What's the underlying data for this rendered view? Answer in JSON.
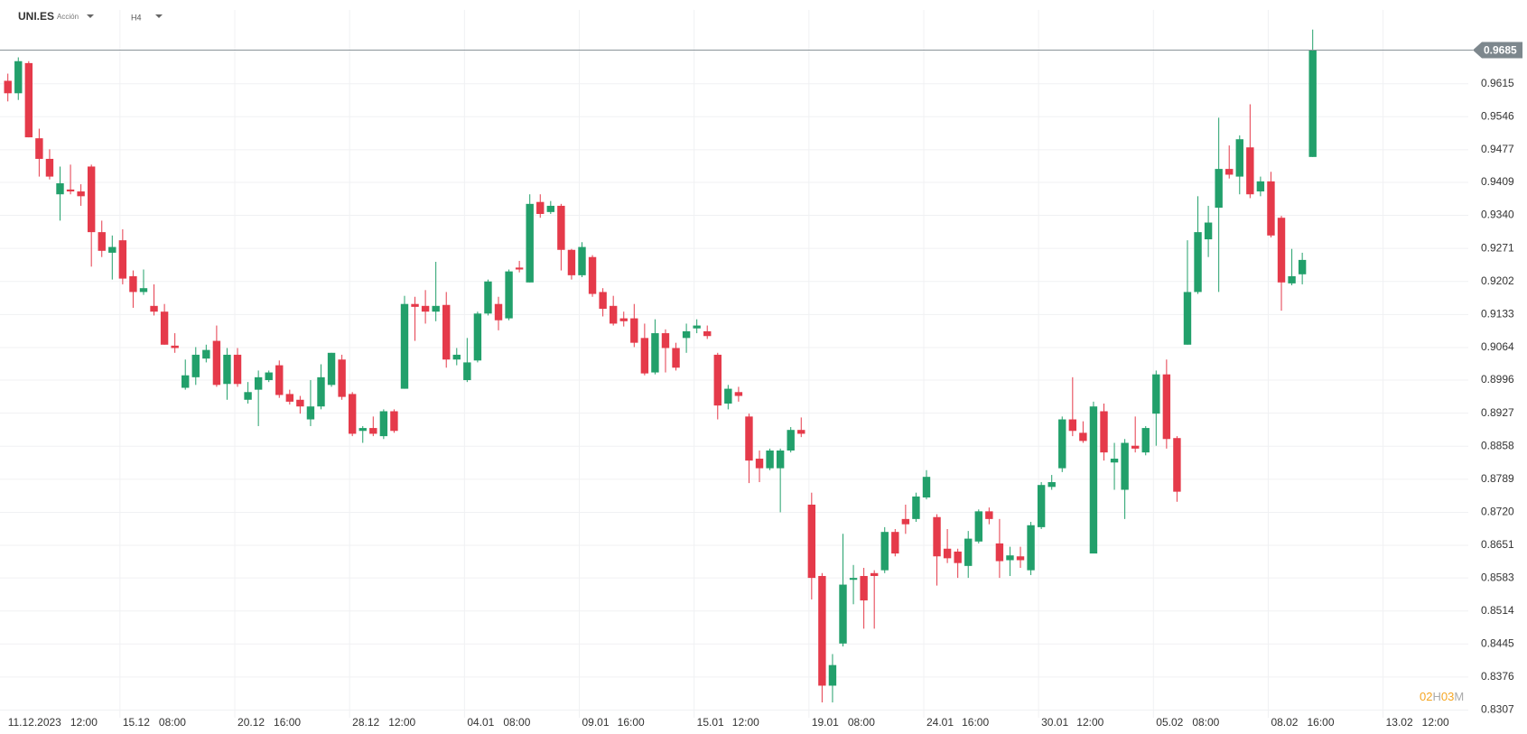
{
  "header": {
    "symbol": "UNI.ES",
    "kind": "Acción",
    "timeframe": "H4"
  },
  "countdown": {
    "hours": "02",
    "h": "H",
    "minutes": "03",
    "m": "M"
  },
  "chart_data": {
    "type": "candlestick",
    "up_color": "#22a06b",
    "down_color": "#e53a4a",
    "grid": true,
    "ylim": [
      0.8291,
      0.9769
    ],
    "yticks": [
      0.9615,
      0.9546,
      0.9477,
      0.9409,
      {
        "value": 0.934,
        "label": "0.9340"
      },
      0.9271,
      0.9202,
      0.9133,
      0.9064,
      0.8996,
      0.8927,
      0.8858,
      0.8789,
      {
        "value": 0.872,
        "label": "0.8720"
      },
      0.8651,
      0.8583,
      0.8514,
      0.8445,
      0.8376,
      0.8307
    ],
    "last_price": 0.9685,
    "x_labels": [
      {
        "date": "11.12.2023",
        "time": "12:00"
      },
      {
        "date": "15.12",
        "time": "08:00"
      },
      {
        "date": "20.12",
        "time": "16:00"
      },
      {
        "date": "28.12",
        "time": "12:00"
      },
      {
        "date": "04.01",
        "time": "08:00"
      },
      {
        "date": "09.01",
        "time": "16:00"
      },
      {
        "date": "15.01",
        "time": "12:00"
      },
      {
        "date": "19.01",
        "time": "08:00"
      },
      {
        "date": "24.01",
        "time": "16:00"
      },
      {
        "date": "30.01",
        "time": "12:00"
      },
      {
        "date": "05.02",
        "time": "08:00"
      },
      {
        "date": "08.02",
        "time": "16:00"
      },
      {
        "date": "13.02",
        "time": "12:00"
      }
    ],
    "open": [
      0.9621,
      0.9595,
      0.9658,
      0.9501,
      0.9458,
      0.9384,
      0.9394,
      0.939,
      0.9442,
      0.9305,
      0.9262,
      0.9288,
      0.9213,
      0.918,
      0.9151,
      0.9139,
      0.9068,
      0.898,
      0.9002,
      0.9041,
      0.9078,
      0.8988,
      0.9049,
      0.8955,
      0.8976,
      0.8996,
      0.9027,
      0.8967,
      0.8955,
      0.8914,
      0.8941,
      0.8986,
      0.9039,
      0.8967,
      0.889,
      0.8896,
      0.8879,
      0.8931,
      0.8978,
      0.9155,
      0.9151,
      0.9139,
      0.9153,
      0.9039,
      0.8996,
      0.9037,
      0.9135,
      0.9155,
      0.9125,
      0.9231,
      0.92,
      0.9368,
      0.9347,
      0.936,
      0.9268,
      0.9215,
      0.9253,
      0.918,
      0.9151,
      0.9125,
      0.9125,
      0.9084,
      0.9012,
      0.9094,
      0.9063,
      0.9084,
      0.9104,
      0.9098,
      0.9049,
      0.8947,
      0.8971,
      0.892,
      0.8832,
      0.8812,
      0.8812,
      0.8849,
      0.8892,
      0.8736,
      0.8587,
      0.8358,
      0.8446,
      0.8579,
      0.8587,
      0.8593,
      0.8599,
      0.8679,
      0.8706,
      0.8706,
      0.8751,
      0.871,
      0.8644,
      0.8638,
      0.8608,
      0.8659,
      0.8722,
      0.8655,
      0.862,
      0.8628,
      0.8599,
      0.8689,
      0.8773,
      0.8812,
      0.8914,
      0.8886,
      0.8634,
      0.8931,
      0.8824,
      0.8767,
      0.8859,
      0.8845,
      0.8926,
      0.9008,
      0.8875,
      0.907,
      0.918,
      0.929,
      0.9356,
      0.9437,
      0.9421,
      0.9482,
      0.939,
      0.9411,
      0.9335,
      0.9198,
      0.9217,
      0.9462
    ],
    "high": [
      0.9636,
      0.967,
      0.9662,
      0.9521,
      0.9478,
      0.9442,
      0.9446,
      0.9405,
      0.9446,
      0.9329,
      0.9298,
      0.9311,
      0.9225,
      0.9227,
      0.9196,
      0.9155,
      0.9094,
      0.9039,
      0.9065,
      0.907,
      0.911,
      0.9063,
      0.9063,
      0.8992,
      0.9016,
      0.9016,
      0.9037,
      0.8976,
      0.8963,
      0.8996,
      0.9029,
      0.9053,
      0.9049,
      0.8971,
      0.89,
      0.892,
      0.8935,
      0.8935,
      0.9172,
      0.917,
      0.9184,
      0.9243,
      0.918,
      0.9063,
      0.9084,
      0.9139,
      0.9206,
      0.917,
      0.9227,
      0.9245,
      0.9384,
      0.9384,
      0.937,
      0.9364,
      0.927,
      0.9284,
      0.9257,
      0.9188,
      0.9172,
      0.9139,
      0.9155,
      0.9114,
      0.9123,
      0.9102,
      0.9074,
      0.9114,
      0.9123,
      0.911,
      0.9053,
      0.8986,
      0.8982,
      0.8926,
      0.8849,
      0.8853,
      0.8853,
      0.8898,
      0.8918,
      0.8761,
      0.8593,
      0.8424,
      0.8675,
      0.861,
      0.8604,
      0.8599,
      0.8689,
      0.8685,
      0.8736,
      0.8761,
      0.8808,
      0.8716,
      0.8685,
      0.8644,
      0.8681,
      0.8726,
      0.873,
      0.8706,
      0.8648,
      0.8648,
      0.87,
      0.8783,
      0.8798,
      0.892,
      0.9002,
      0.891,
      0.8951,
      0.8947,
      0.8865,
      0.8873,
      0.892,
      0.89,
      0.9016,
      0.9039,
      0.8879,
      0.9288,
      0.938,
      0.936,
      0.9544,
      0.9486,
      0.9507,
      0.9572,
      0.9421,
      0.9431,
      0.9339,
      0.927,
      0.9262,
      0.9728
    ],
    "low": [
      0.9578,
      0.9581,
      0.9503,
      0.9421,
      0.9415,
      0.9329,
      0.9384,
      0.936,
      0.9233,
      0.9253,
      0.9206,
      0.9196,
      0.9147,
      0.9174,
      0.9131,
      0.907,
      0.9053,
      0.8976,
      0.8986,
      0.9033,
      0.8982,
      0.8955,
      0.8982,
      0.8947,
      0.89,
      0.8992,
      0.8959,
      0.8945,
      0.8926,
      0.89,
      0.8935,
      0.8982,
      0.8955,
      0.8879,
      0.8865,
      0.8879,
      0.8873,
      0.8886,
      0.8978,
      0.9078,
      0.9114,
      0.9119,
      0.9022,
      0.9027,
      0.8992,
      0.9033,
      0.9131,
      0.91,
      0.9121,
      0.9221,
      0.92,
      0.9335,
      0.9343,
      0.9225,
      0.9206,
      0.9211,
      0.917,
      0.9129,
      0.911,
      0.9108,
      0.9065,
      0.9006,
      0.9008,
      0.9012,
      0.9016,
      0.9053,
      0.9094,
      0.9082,
      0.8914,
      0.8935,
      0.8951,
      0.8781,
      0.8783,
      0.8808,
      0.872,
      0.8845,
      0.8877,
      0.8538,
      0.8323,
      0.8323,
      0.844,
      0.8528,
      0.8477,
      0.8477,
      0.8593,
      0.8628,
      0.8675,
      0.87,
      0.8747,
      0.8567,
      0.8614,
      0.8583,
      0.8583,
      0.8655,
      0.8695,
      0.8583,
      0.8587,
      0.8604,
      0.8589,
      0.8685,
      0.8767,
      0.8804,
      0.8879,
      0.8865,
      0.8634,
      0.8828,
      0.8767,
      0.8706,
      0.8845,
      0.8839,
      0.8859,
      0.8853,
      0.8742,
      0.907,
      0.9176,
      0.9253,
      0.918,
      0.9417,
      0.9384,
      0.9376,
      0.938,
      0.9294,
      0.9141,
      0.9194,
      0.9196,
      0.9462
    ],
    "close": [
      0.9595,
      0.9662,
      0.9503,
      0.9458,
      0.9421,
      0.9407,
      0.939,
      0.938,
      0.9305,
      0.9266,
      0.9274,
      0.9208,
      0.918,
      0.9188,
      0.9139,
      0.907,
      0.9063,
      0.9006,
      0.9049,
      0.9059,
      0.8986,
      0.9049,
      0.8988,
      0.8971,
      0.9002,
      0.9012,
      0.8965,
      0.8951,
      0.8941,
      0.8941,
      0.9002,
      0.9053,
      0.8961,
      0.8884,
      0.8896,
      0.8884,
      0.8931,
      0.889,
      0.9155,
      0.9149,
      0.9139,
      0.9151,
      0.9039,
      0.9049,
      0.9033,
      0.9135,
      0.9202,
      0.9121,
      0.9223,
      0.9227,
      0.9364,
      0.9343,
      0.936,
      0.9268,
      0.9215,
      0.9274,
      0.9176,
      0.9145,
      0.9114,
      0.9119,
      0.9074,
      0.901,
      0.9094,
      0.9063,
      0.9022,
      0.9098,
      0.911,
      0.9088,
      0.8943,
      0.8978,
      0.8963,
      0.8828,
      0.8812,
      0.8849,
      0.8849,
      0.8892,
      0.8884,
      0.8583,
      0.8358,
      0.8401,
      0.8569,
      0.8583,
      0.8536,
      0.8587,
      0.8679,
      0.8634,
      0.8695,
      0.8753,
      0.8794,
      0.8628,
      0.8624,
      0.8614,
      0.8665,
      0.8722,
      0.8706,
      0.8618,
      0.863,
      0.862,
      0.8693,
      0.8777,
      0.8783,
      0.8914,
      0.889,
      0.8869,
      0.8941,
      0.8845,
      0.8832,
      0.8865,
      0.8853,
      0.8896,
      0.9008,
      0.8873,
      0.8763,
      0.918,
      0.9305,
      0.9325,
      0.9437,
      0.9425,
      0.9499,
      0.9384,
      0.9411,
      0.9298,
      0.92,
      0.9213,
      0.9247,
      0.9685
    ]
  }
}
